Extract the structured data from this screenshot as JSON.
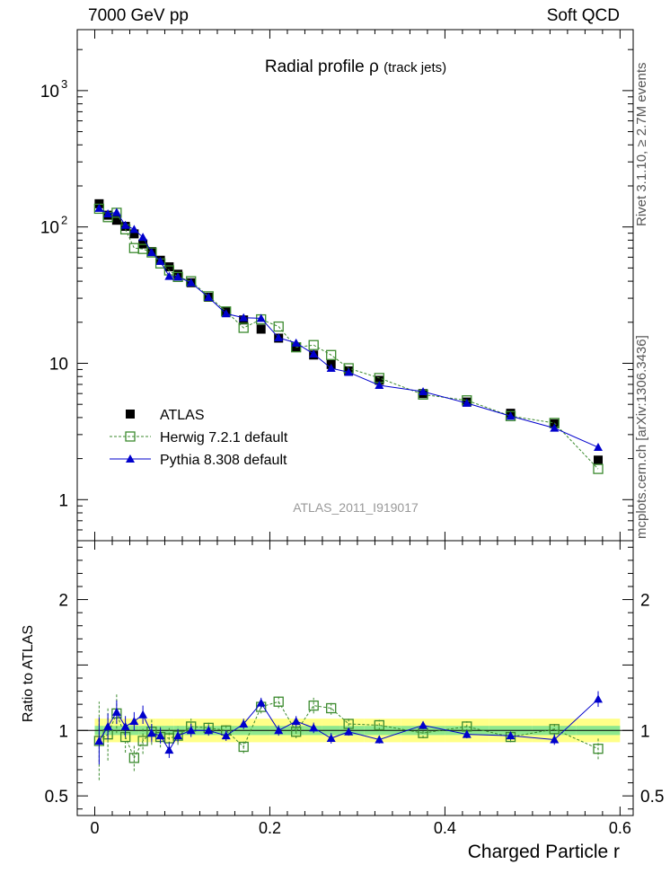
{
  "header": {
    "left": "7000 GeV pp",
    "right": "Soft QCD",
    "side_top": "Rivet 3.1.10, ≥ 2.7M events",
    "side_bottom": "mcplots.cern.ch [arXiv:1306.3436]"
  },
  "colors": {
    "atlas": "#000000",
    "herwig": "#3b8a2e",
    "pythia": "#0000cc",
    "band_inner": "#8ee88e",
    "band_outer": "#ffff88"
  },
  "chart_data": {
    "type": "scatter",
    "title": "Radial profile",
    "title_symbol": "ρ",
    "title_suffix": "(track jets)",
    "watermark": "ATLAS_2011_I919017",
    "xlabel": "Charged Particle r",
    "ylabel_ratio": "Ratio to ATLAS",
    "xlim": [
      -0.02,
      0.615
    ],
    "ylim": [
      0.5,
      2800
    ],
    "yscale": "log",
    "ratio_ylim": [
      0.35,
      2.45
    ],
    "x_ticks": [
      "0",
      "0.2",
      "0.4",
      "0.6"
    ],
    "y_ticks": [
      {
        "base": "1",
        "exp": ""
      },
      {
        "base": "10",
        "exp": ""
      },
      {
        "base": "10",
        "exp": "2"
      },
      {
        "base": "10",
        "exp": "3"
      }
    ],
    "ratio_ticks": [
      "0.5",
      "1",
      "2"
    ],
    "legend": {
      "placement": "lower-left",
      "entries": [
        "ATLAS",
        "Herwig 7.2.1 default",
        "Pythia 8.308 default"
      ]
    },
    "x": [
      0.005,
      0.015,
      0.025,
      0.035,
      0.045,
      0.055,
      0.065,
      0.075,
      0.085,
      0.095,
      0.11,
      0.13,
      0.15,
      0.17,
      0.19,
      0.21,
      0.23,
      0.25,
      0.27,
      0.29,
      0.325,
      0.375,
      0.425,
      0.475,
      0.525,
      0.575
    ],
    "series": [
      {
        "name": "ATLAS",
        "marker": "square-filled",
        "values": [
          148,
          122,
          112,
          101,
          89,
          75,
          66,
          57,
          51,
          45,
          39,
          30.5,
          24,
          20.8,
          17.8,
          15.3,
          13.2,
          11.5,
          9.8,
          8.8,
          7.5,
          6.0,
          5.2,
          4.3,
          3.6,
          1.95
        ],
        "band_inner": 0.035,
        "band_outer": 0.09
      },
      {
        "name": "Herwig 7.2.1 default",
        "marker": "square-open",
        "line": "dashed",
        "values": [
          136,
          118,
          127,
          96,
          70,
          69,
          65,
          54,
          48,
          43,
          40,
          31,
          24,
          18.2,
          21,
          18.6,
          13.1,
          13.6,
          11.5,
          9.2,
          7.8,
          5.9,
          5.35,
          4.1,
          3.65,
          1.68
        ],
        "ratio": [
          0.92,
          0.97,
          1.13,
          0.95,
          0.79,
          0.92,
          0.99,
          0.95,
          0.94,
          0.96,
          1.03,
          1.02,
          1.0,
          0.875,
          1.18,
          1.22,
          0.99,
          1.19,
          1.17,
          1.05,
          1.04,
          0.98,
          1.03,
          0.95,
          1.01,
          0.86
        ],
        "ratio_err": [
          0.3,
          0.2,
          0.15,
          0.12,
          0.1,
          0.1,
          0.1,
          0.08,
          0.08,
          0.07,
          0.06,
          0.05,
          0.05,
          0.05,
          0.05,
          0.05,
          0.05,
          0.06,
          0.05,
          0.05,
          0.04,
          0.04,
          0.04,
          0.04,
          0.05,
          0.08
        ]
      },
      {
        "name": "Pythia 8.308 default",
        "marker": "triangle-filled",
        "line": "solid",
        "values": [
          137,
          125,
          128,
          103,
          96,
          84,
          65,
          56,
          43.5,
          43,
          39,
          30.5,
          23.1,
          21.6,
          21.4,
          15.4,
          14.1,
          11.7,
          9.2,
          8.6,
          6.9,
          6.2,
          5.1,
          4.1,
          3.35,
          2.42
        ],
        "ratio": [
          0.92,
          1.03,
          1.14,
          1.03,
          1.07,
          1.12,
          0.98,
          0.96,
          0.85,
          0.96,
          1.0,
          1.0,
          0.96,
          1.05,
          1.21,
          1.0,
          1.07,
          1.02,
          0.94,
          0.99,
          0.93,
          1.04,
          0.97,
          0.96,
          0.93,
          1.24
        ],
        "ratio_err": [
          0.18,
          0.1,
          0.09,
          0.08,
          0.07,
          0.07,
          0.07,
          0.06,
          0.06,
          0.05,
          0.05,
          0.04,
          0.04,
          0.04,
          0.04,
          0.04,
          0.04,
          0.04,
          0.04,
          0.03,
          0.03,
          0.03,
          0.03,
          0.03,
          0.04,
          0.06
        ]
      }
    ]
  }
}
